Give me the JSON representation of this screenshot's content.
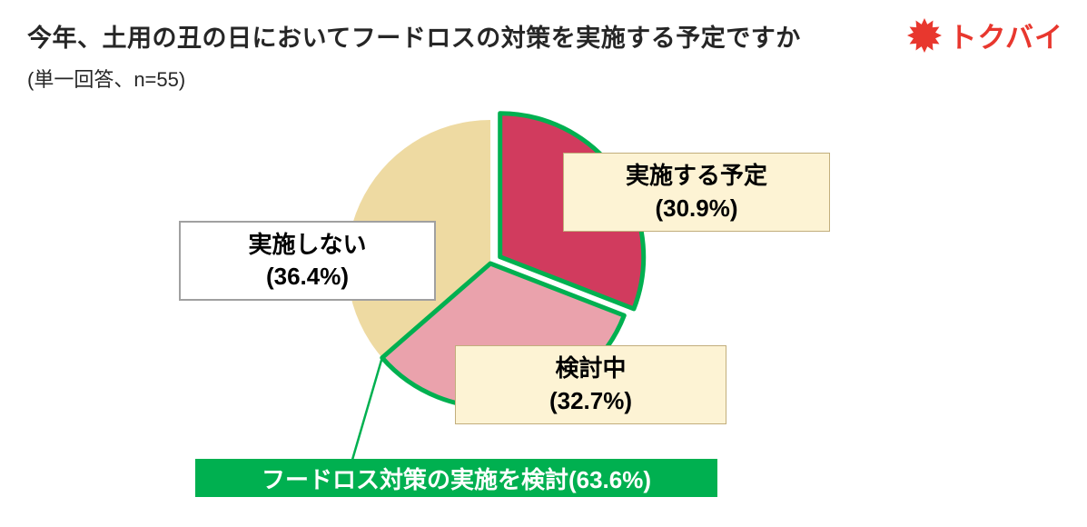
{
  "header": {
    "title": "今年、土用の丑の日においてフードロスの対策を実施する予定ですか",
    "subtitle": "(単一回答、n=55)",
    "logo": {
      "text": "トクバイ",
      "color": "#e8372e",
      "icon": "burst-icon"
    }
  },
  "chart_data": {
    "type": "pie",
    "n": 55,
    "start_angle_deg": 0,
    "direction": "clockwise",
    "segments": [
      {
        "key": "plan",
        "label": "実施する予定",
        "pct": 30.9,
        "color": "#d13b5e",
        "exploded": true
      },
      {
        "key": "considering",
        "label": "検討中",
        "pct": 32.7,
        "color": "#eaa2ac",
        "exploded": false
      },
      {
        "key": "none",
        "label": "実施しない",
        "pct": 36.4,
        "color": "#eedaa2",
        "exploded": false
      }
    ],
    "highlight": {
      "label": "フードロス対策の実施を検討(63.6%)",
      "pct": 63.6,
      "color": "#00b050",
      "covers_segments": [
        0,
        1
      ]
    }
  },
  "callouts": {
    "plan": {
      "line1": "実施する予定",
      "line2": "(30.9%)"
    },
    "considering": {
      "line1": "検討中",
      "line2": "(32.7%)"
    },
    "none": {
      "line1": "実施しない",
      "line2": "(36.4%)"
    },
    "highlight": {
      "text": "フードロス対策の実施を検討(63.6%)"
    }
  }
}
